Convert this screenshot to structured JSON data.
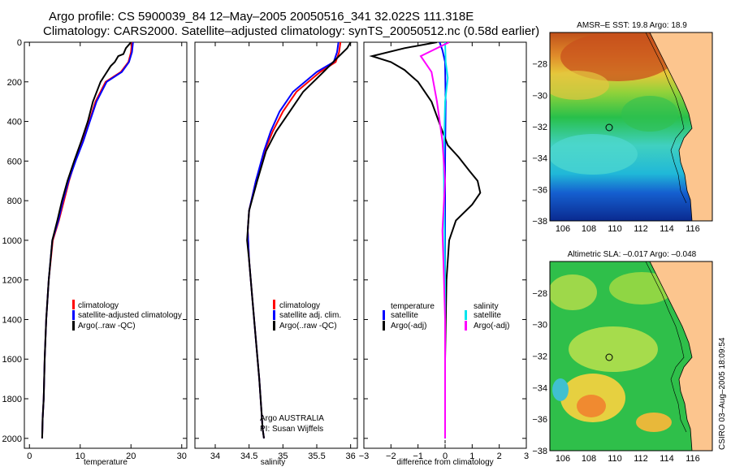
{
  "header": {
    "line1": "Argo profile: CS 5900039_84 12–May–2005 20050516_341 32.022S 111.318E",
    "line2": "Climatology: CARS2000. Satellite–adjusted climatology: synTS_20050512.nc (0.58d earlier)"
  },
  "colors": {
    "climatology": "#ff0000",
    "satellite": "#0000ff",
    "argo": "#000000",
    "salinity_sat": "#00e5ee",
    "salinity_argo": "#ff00ff",
    "land": "#fcc58e"
  },
  "chart_data": [
    {
      "type": "line",
      "id": "temperature",
      "xlabel": "temperature",
      "xlim": [
        -1,
        31
      ],
      "ylim": [
        0,
        2050
      ],
      "xticks": [
        0,
        10,
        20,
        30
      ],
      "yticks": [
        0,
        200,
        400,
        600,
        800,
        1000,
        1200,
        1400,
        1600,
        1800,
        2000
      ],
      "series": [
        {
          "name": "climatology",
          "color": "#ff0000",
          "x": [
            20.2,
            20.0,
            19.5,
            18.0,
            15.0,
            13.0,
            11.8,
            10.5,
            9.0,
            7.8,
            6.8,
            5.8,
            4.6,
            3.8,
            3.3,
            3.0,
            2.8,
            2.6,
            2.5
          ],
          "y": [
            0,
            50,
            100,
            150,
            200,
            300,
            400,
            500,
            600,
            700,
            800,
            900,
            1000,
            1200,
            1400,
            1600,
            1800,
            1900,
            2000
          ]
        },
        {
          "name": "satellite-adjusted climatology",
          "color": "#0000ff",
          "x": [
            20.4,
            20.2,
            19.6,
            18.2,
            15.2,
            13.2,
            11.9,
            10.6,
            9.1,
            7.7,
            6.6,
            5.7,
            4.5,
            3.8,
            3.3,
            3.0,
            2.8,
            2.6,
            2.5
          ],
          "y": [
            0,
            50,
            100,
            150,
            200,
            300,
            400,
            500,
            600,
            700,
            800,
            900,
            1000,
            1200,
            1400,
            1600,
            1800,
            1900,
            2000
          ]
        },
        {
          "name": "Argo(..raw -QC)",
          "color": "#000000",
          "x": [
            20.0,
            19.0,
            18.5,
            17.5,
            16.8,
            16.0,
            14.0,
            12.5,
            11.5,
            10.2,
            8.8,
            7.5,
            6.4,
            5.5,
            4.5,
            3.8,
            3.3,
            3.0,
            2.8,
            2.6,
            2.5
          ],
          "y": [
            0,
            30,
            60,
            70,
            100,
            120,
            200,
            300,
            400,
            500,
            600,
            700,
            800,
            900,
            1000,
            1200,
            1400,
            1600,
            1800,
            1900,
            2000
          ]
        }
      ],
      "legend": [
        "climatology",
        "satellite-adjusted climatology",
        "Argo(..raw -QC)"
      ]
    },
    {
      "type": "line",
      "id": "salinity",
      "xlabel": "salinity",
      "xlim": [
        33.7,
        36.1
      ],
      "ylim": [
        0,
        2050
      ],
      "xticks": [
        34,
        34.5,
        35,
        35.5,
        36
      ],
      "xticklabels": [
        "34",
        "34.5",
        "35",
        "35.5",
        "36"
      ],
      "series": [
        {
          "name": "climatology",
          "color": "#ff0000",
          "x": [
            35.85,
            35.83,
            35.78,
            35.55,
            35.2,
            35.0,
            34.85,
            34.73,
            34.6,
            34.5,
            34.48,
            34.5,
            34.55,
            34.6,
            34.65,
            34.68,
            34.7,
            34.72
          ],
          "y": [
            0,
            50,
            100,
            150,
            250,
            350,
            450,
            550,
            700,
            850,
            950,
            1100,
            1300,
            1500,
            1700,
            1850,
            1950,
            2000
          ]
        },
        {
          "name": "satellite adj. clim.",
          "color": "#0000ff",
          "x": [
            35.82,
            35.8,
            35.75,
            35.5,
            35.15,
            34.95,
            34.82,
            34.72,
            34.6,
            34.5,
            34.48,
            34.5,
            34.55,
            34.6,
            34.65,
            34.68,
            34.7,
            34.72
          ],
          "y": [
            0,
            50,
            100,
            150,
            250,
            350,
            450,
            550,
            700,
            850,
            950,
            1100,
            1300,
            1500,
            1700,
            1850,
            1950,
            2000
          ]
        },
        {
          "name": "Argo(..raw -QC)",
          "color": "#000000",
          "x": [
            36.0,
            35.95,
            35.8,
            35.6,
            35.3,
            35.1,
            34.9,
            34.75,
            34.62,
            34.5,
            34.47,
            34.5,
            34.55,
            34.6,
            34.65,
            34.68,
            34.7,
            34.72
          ],
          "y": [
            0,
            30,
            80,
            150,
            250,
            350,
            450,
            550,
            700,
            850,
            1000,
            1100,
            1300,
            1500,
            1700,
            1850,
            1950,
            2000
          ]
        }
      ],
      "legend": [
        "climatology",
        "satellite adj. clim.",
        "Argo(..raw -QC)"
      ],
      "annotation": [
        "Argo AUSTRALIA",
        "PI: Susan Wijffels"
      ]
    },
    {
      "type": "line",
      "id": "difference",
      "xlabel": "difference from climatology",
      "xlim": [
        -3,
        3
      ],
      "ylim": [
        0,
        2050
      ],
      "xticks": [
        -3,
        -2,
        -1,
        0,
        1,
        2,
        3
      ],
      "series": [
        {
          "name": "temperature satellite",
          "color": "#0000ff",
          "x": [
            -0.2,
            -0.1,
            0.0,
            0.02,
            0.0,
            0.0,
            0.0
          ],
          "y": [
            0,
            40,
            100,
            300,
            600,
            1000,
            2000
          ]
        },
        {
          "name": "temperature Argo(-adj)",
          "color": "#000000",
          "x": [
            -0.3,
            -1.5,
            -2.7,
            -2.0,
            -1.5,
            -1.0,
            -0.5,
            -0.1,
            0.1,
            0.5,
            0.9,
            1.2,
            1.3,
            1.0,
            0.4,
            0.15,
            0.05,
            0.0,
            0.0
          ],
          "y": [
            0,
            30,
            70,
            100,
            140,
            200,
            300,
            450,
            520,
            580,
            650,
            700,
            760,
            820,
            900,
            1000,
            1200,
            1600,
            2000
          ]
        },
        {
          "name": "salinity satellite",
          "color": "#00e5ee",
          "x": [
            0.0,
            0.02,
            0.1,
            0.0,
            -0.05,
            0.0,
            0.0
          ],
          "y": [
            0,
            100,
            180,
            300,
            600,
            1200,
            2000
          ]
        },
        {
          "name": "salinity Argo(-adj)",
          "color": "#ff00ff",
          "x": [
            0.15,
            -0.9,
            -0.5,
            -0.3,
            -0.1,
            0.0,
            -0.1,
            -0.05,
            0.0,
            0.0
          ],
          "y": [
            0,
            70,
            150,
            300,
            500,
            700,
            950,
            1150,
            1400,
            2000
          ]
        }
      ],
      "legend_left_title": "temperature",
      "legend_left": [
        "satellite",
        "Argo(-adj)"
      ],
      "legend_right_title": "salinity",
      "legend_right": [
        "satellite",
        "Argo(-adj)"
      ]
    },
    {
      "type": "heatmap",
      "id": "sst-map",
      "title": "AMSR–E SST: 19.8 Argo: 18.9",
      "xlim": [
        105,
        117.5
      ],
      "ylim": [
        -38,
        -26
      ],
      "xticks": [
        106,
        108,
        110,
        112,
        114,
        116
      ],
      "yticks": [
        -28,
        -30,
        -32,
        -34,
        -36,
        -38
      ],
      "profile_location": [
        111.318,
        -32.022
      ]
    },
    {
      "type": "heatmap",
      "id": "sla-map",
      "title": "Altimetric SLA: –0.017 Argo: –0.048",
      "xlim": [
        105,
        117.5
      ],
      "ylim": [
        -38,
        -26
      ],
      "xticks": [
        106,
        108,
        110,
        112,
        114,
        116
      ],
      "yticks": [
        -28,
        -30,
        -32,
        -34,
        -36,
        -38
      ],
      "profile_location": [
        111.318,
        -32.022
      ]
    }
  ],
  "footer": {
    "stamp": "CSIRO 03–Aug–2005 18:09:54"
  }
}
